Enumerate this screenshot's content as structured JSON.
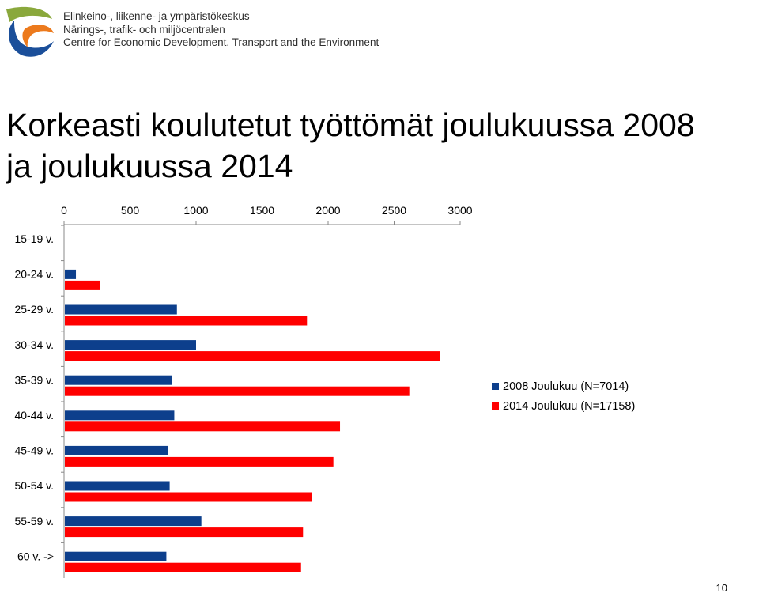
{
  "header": {
    "org_lines": [
      "Elinkeino-, liikenne- ja ympäristökeskus",
      "Närings-, trafik- och miljöcentralen",
      "Centre for Economic Development, Transport and the Environment"
    ]
  },
  "slide": {
    "title_line1": "Korkeasti koulutetut työttömät joulukuussa 2008",
    "title_line2": "ja joulukuussa 2014",
    "page_number": "10"
  },
  "colors": {
    "series_2008": "#0d3f8c",
    "series_2014": "#ff0000",
    "axis": "#888888",
    "logo_green": "#8aa83c",
    "logo_orange": "#ec7a1d",
    "logo_blue": "#1b4f9a"
  },
  "chart_data": {
    "type": "bar",
    "orientation": "horizontal",
    "x_axis_position": "top",
    "grid": false,
    "xlim": [
      0,
      3000
    ],
    "xticks": [
      0,
      500,
      1000,
      1500,
      2000,
      2500,
      3000
    ],
    "categories": [
      "15-19 v.",
      "20-24 v.",
      "25-29 v.",
      "30-34 v.",
      "35-39 v.",
      "40-44 v.",
      "45-49 v.",
      "50-54 v.",
      "55-59 v.",
      "60 v. ->"
    ],
    "series": [
      {
        "name": "2008 Joulukuu (N=7014)",
        "values": [
          0,
          90,
          855,
          1000,
          815,
          835,
          785,
          800,
          1040,
          775
        ]
      },
      {
        "name": "2014 Joulukuu (N=17158)",
        "values": [
          0,
          275,
          1840,
          2845,
          2615,
          2090,
          2040,
          1880,
          1810,
          1795
        ]
      }
    ],
    "legend_position": "right"
  }
}
